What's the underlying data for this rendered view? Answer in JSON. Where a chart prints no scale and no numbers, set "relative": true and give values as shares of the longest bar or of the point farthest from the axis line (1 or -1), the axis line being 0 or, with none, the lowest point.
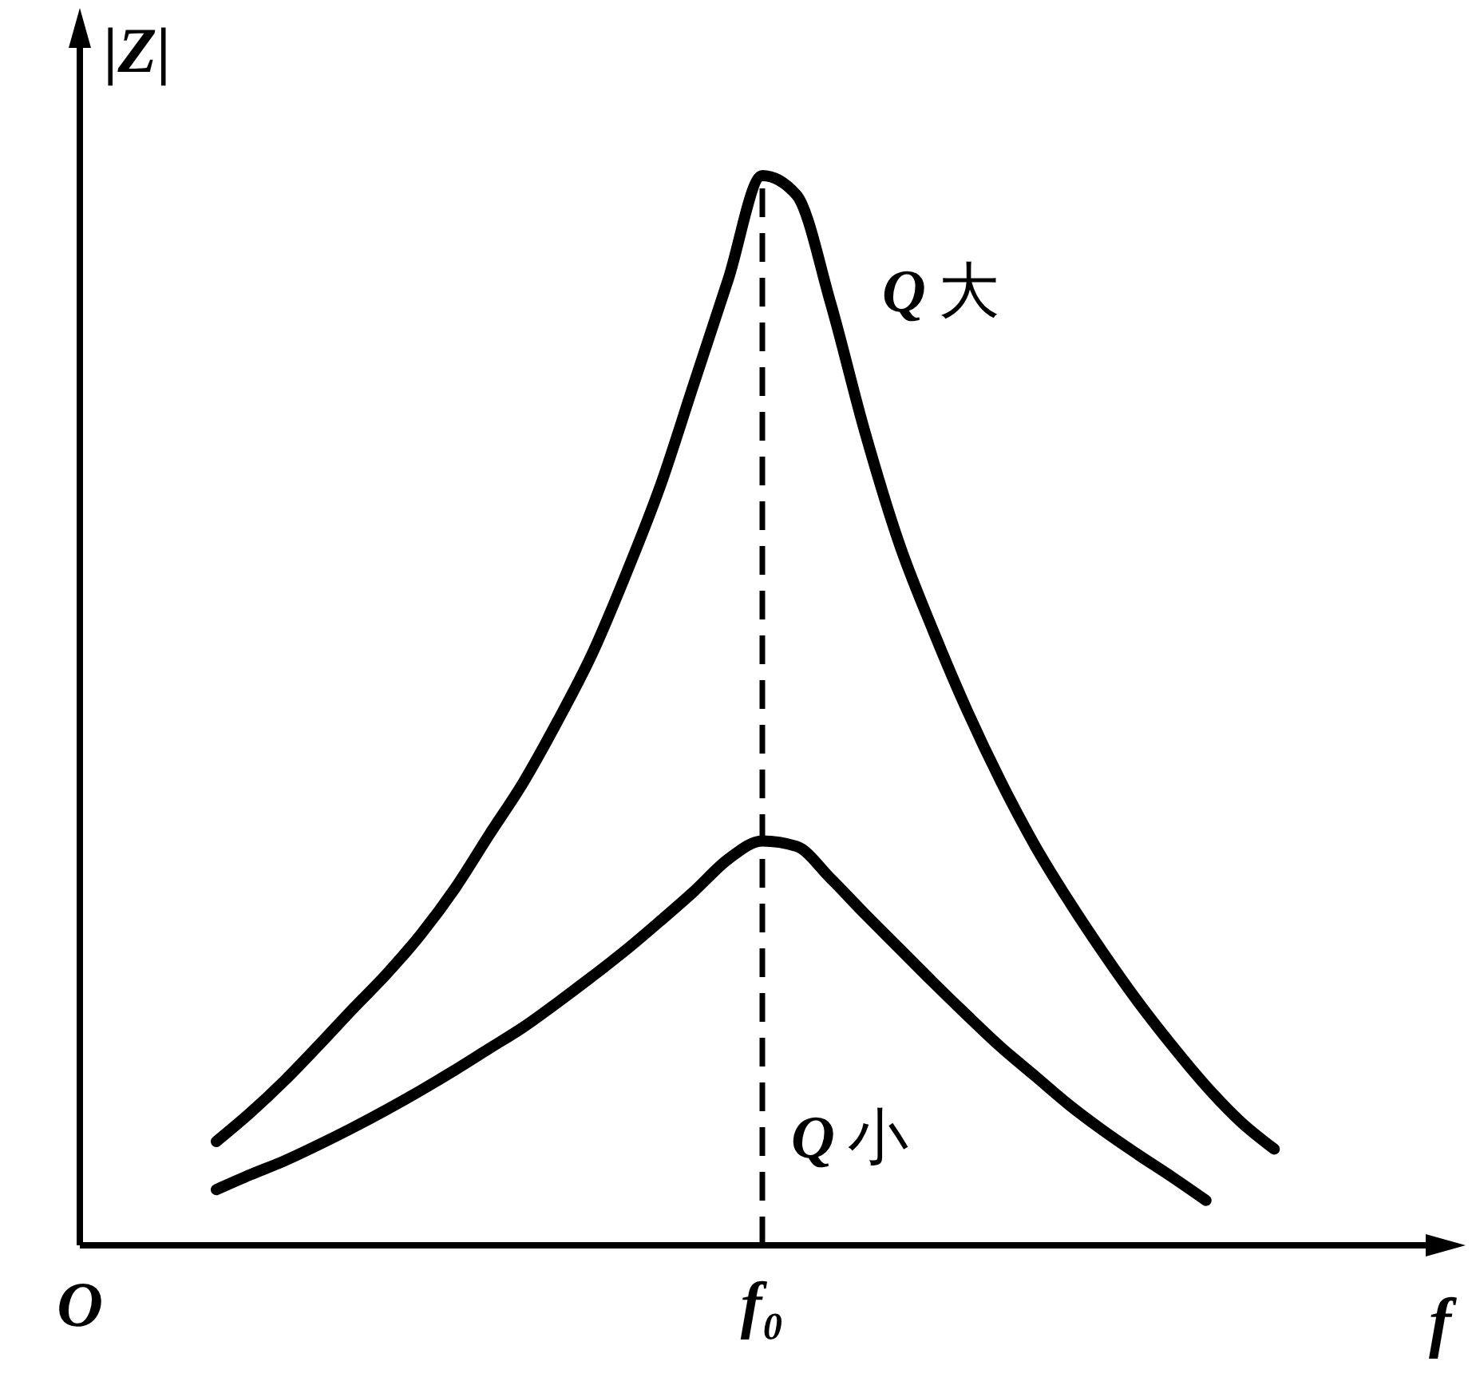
{
  "chart_data": {
    "type": "line",
    "relative": true,
    "xlabel": "f",
    "ylabel": "|Z|",
    "categories": [
      "O",
      null,
      null,
      null,
      null,
      null,
      null,
      null,
      null,
      null,
      null,
      null,
      null,
      null,
      null,
      null,
      null,
      null,
      null,
      null,
      "f₀",
      null,
      null,
      null,
      null,
      null,
      null,
      null,
      null,
      null,
      null,
      null,
      null,
      null,
      null,
      null,
      null,
      null,
      null,
      null,
      null
    ],
    "series": [
      {
        "name": "Q大",
        "color": "#000000",
        "values": [
          null,
          null,
          null,
          null,
          0.097,
          0.124,
          0.154,
          0.187,
          0.221,
          0.254,
          0.291,
          0.334,
          0.384,
          0.433,
          0.49,
          0.552,
          0.627,
          0.709,
          0.806,
          0.903,
          1,
          0.982,
          0.881,
          0.761,
          0.657,
          0.575,
          0.5,
          0.433,
          0.373,
          0.321,
          0.273,
          0.228,
          0.187,
          0.149,
          0.116,
          0.09,
          null,
          null,
          null,
          null,
          null
        ]
      },
      {
        "name": "Q小",
        "color": "#000000",
        "values": [
          null,
          null,
          null,
          null,
          0.052,
          0.066,
          0.079,
          0.094,
          0.11,
          0.127,
          0.145,
          0.164,
          0.184,
          0.204,
          0.227,
          0.251,
          0.276,
          0.303,
          0.331,
          0.361,
          0.378,
          0.373,
          0.343,
          0.31,
          0.278,
          0.246,
          0.215,
          0.185,
          0.158,
          0.131,
          0.107,
          0.085,
          0.064,
          0.042,
          null,
          null,
          null,
          null,
          null,
          null,
          null
        ]
      }
    ],
    "ref_lines": [
      {
        "axis": "x",
        "value": "f₀",
        "line_style": "dashed",
        "color": "#000000"
      }
    ]
  }
}
